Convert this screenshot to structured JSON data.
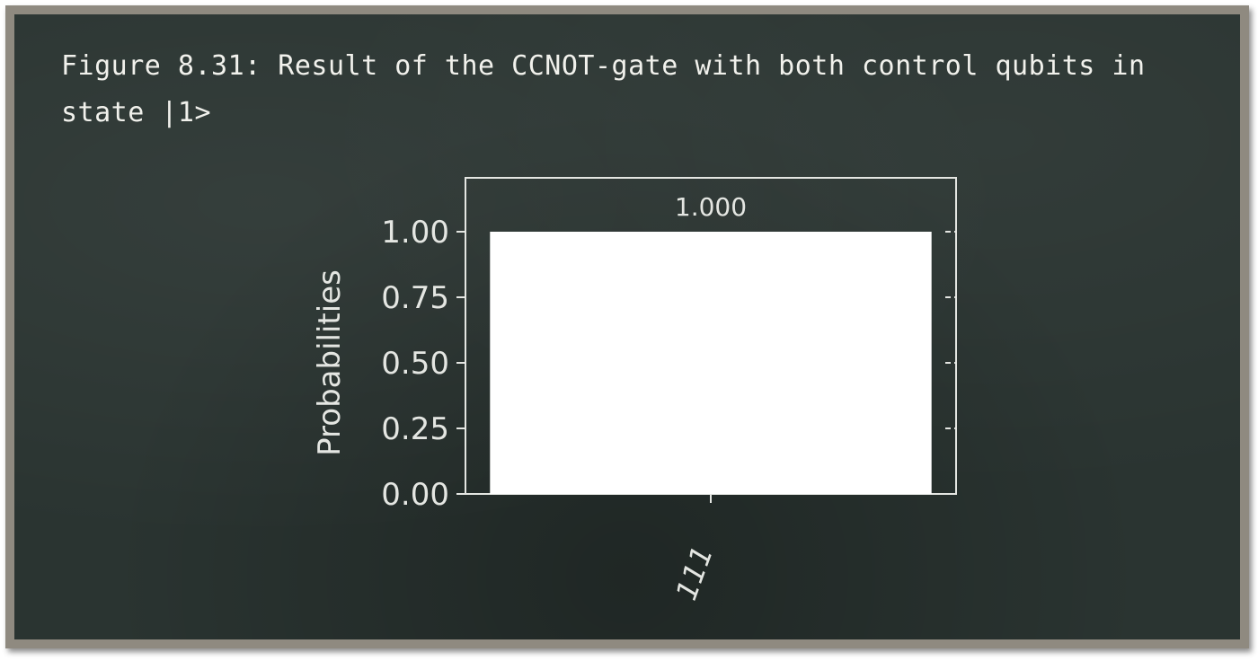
{
  "caption": "Figure 8.31: Result of the CCNOT-gate with both control qubits in state |1>",
  "colors": {
    "board": "#2a3431",
    "frame": "#8f8a80",
    "bar": "#ffffff",
    "ink": "#e4e6e2"
  },
  "chart_data": {
    "type": "bar",
    "categories": [
      "111"
    ],
    "values": [
      1.0
    ],
    "data_labels": [
      "1.000"
    ],
    "ylabel": "Probabilities",
    "xlabel": "",
    "ylim": [
      0,
      1.0
    ],
    "yticks": [
      0.0,
      0.25,
      0.5,
      0.75,
      1.0
    ],
    "ytick_labels": [
      "0.00",
      "0.25",
      "0.50",
      "0.75",
      "1.00"
    ],
    "grid": false,
    "legend": "none"
  }
}
